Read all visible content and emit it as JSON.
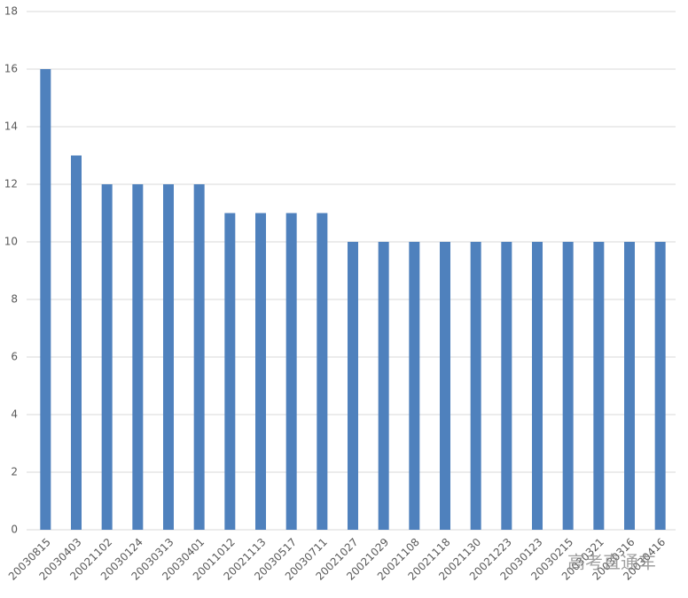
{
  "chart_data": {
    "type": "bar",
    "categories": [
      "20030815",
      "20030403",
      "20021102",
      "20030124",
      "20030313",
      "20030401",
      "20011012",
      "20021113",
      "20030517",
      "20030711",
      "20021027",
      "20021029",
      "20021108",
      "20021118",
      "20021130",
      "20021223",
      "20030123",
      "20030215",
      "20030321",
      "20030316",
      "20030416"
    ],
    "values": [
      16,
      13,
      12,
      12,
      12,
      12,
      11,
      11,
      11,
      11,
      10,
      10,
      10,
      10,
      10,
      10,
      10,
      10,
      10,
      10,
      10
    ],
    "color": "#4f81bd",
    "ylim": [
      0,
      18
    ],
    "yticks": [
      0,
      2,
      4,
      6,
      8,
      10,
      12,
      14,
      16,
      18
    ],
    "grid": true
  },
  "watermark": "高考直通车"
}
